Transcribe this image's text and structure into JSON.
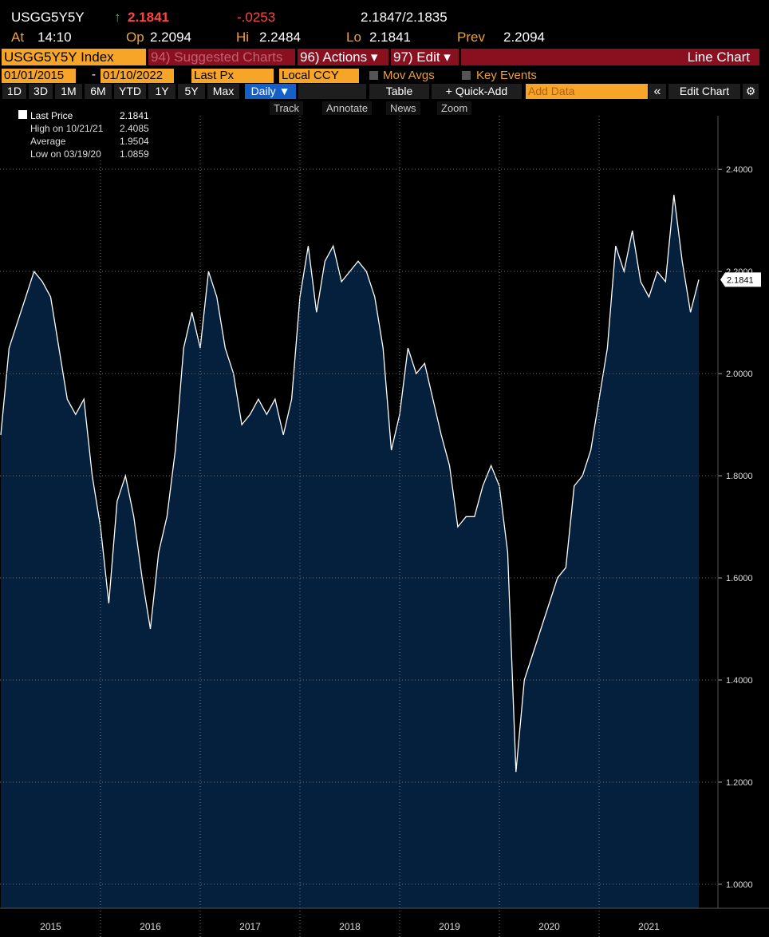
{
  "header": {
    "ticker": "USGG5Y5Y",
    "arrow": "↑",
    "last": "2.1841",
    "change": "-.0253",
    "bidask": "2.1847/2.1835",
    "at_label": "At",
    "at": "14:10",
    "op_label": "Op",
    "op": "2.2094",
    "hi_label": "Hi",
    "hi": "2.2484",
    "lo_label": "Lo",
    "lo": "2.1841",
    "prev_label": "Prev",
    "prev": "2.2094"
  },
  "menu": {
    "security": "USGG5Y5Y Index",
    "suggested": "94) Suggested Charts",
    "actions": "96) Actions ▾",
    "edit": "97) Edit ▾",
    "chart_type": "Line Chart"
  },
  "settings": {
    "start": "01/01/2015",
    "dash": "-",
    "end": "01/10/2022",
    "field": "Last Px",
    "currency": "Local CCY",
    "mov_avgs": "Mov Avgs",
    "key_events": "Key Events"
  },
  "toolbar": {
    "periods": [
      "1D",
      "3D",
      "1M",
      "6M",
      "YTD",
      "1Y",
      "5Y",
      "Max"
    ],
    "frequency": "Daily ▼",
    "table": "Table",
    "quick_add": "+ Quick-Add",
    "add_data": "Add Data",
    "collapse": "«",
    "edit_chart": "Edit Chart"
  },
  "tools": [
    "Track",
    "Annotate",
    "News",
    "Zoom"
  ],
  "legend": {
    "rows": [
      [
        "Last Price",
        "2.1841"
      ],
      [
        "High on 10/21/21",
        "2.4085"
      ],
      [
        "Average",
        "1.9504"
      ],
      [
        "Low on 03/19/20",
        "1.0859"
      ]
    ]
  },
  "chart_data": {
    "type": "area",
    "color": "#ffffff",
    "fill": "#04203d",
    "categories": [
      null,
      null,
      null,
      null,
      null,
      null,
      "2015",
      null,
      null,
      null,
      null,
      null,
      null,
      null,
      null,
      null,
      null,
      null,
      "2016",
      null,
      null,
      null,
      null,
      null,
      null,
      null,
      null,
      null,
      null,
      null,
      "2017",
      null,
      null,
      null,
      null,
      null,
      null,
      null,
      null,
      null,
      null,
      null,
      "2018",
      null,
      null,
      null,
      null,
      null,
      null,
      null,
      null,
      null,
      null,
      null,
      "2019",
      null,
      null,
      null,
      null,
      null,
      null,
      null,
      null,
      null,
      null,
      null,
      "2020",
      null,
      null,
      null,
      null,
      null,
      null,
      null,
      null,
      null,
      null,
      null,
      "2021",
      null,
      null,
      null,
      null,
      null,
      null
    ],
    "values": [
      1.88,
      2.05,
      2.1,
      2.15,
      2.2,
      2.18,
      2.15,
      2.05,
      1.95,
      1.92,
      1.95,
      1.8,
      1.7,
      1.55,
      1.75,
      1.8,
      1.72,
      1.6,
      1.5,
      1.65,
      1.72,
      1.85,
      2.05,
      2.12,
      2.05,
      2.2,
      2.15,
      2.05,
      2.0,
      1.9,
      1.92,
      1.95,
      1.92,
      1.95,
      1.88,
      1.95,
      2.15,
      2.25,
      2.12,
      2.22,
      2.25,
      2.18,
      2.2,
      2.22,
      2.2,
      2.15,
      2.05,
      1.85,
      1.92,
      2.05,
      2.0,
      2.02,
      1.95,
      1.88,
      1.82,
      1.7,
      1.72,
      1.72,
      1.78,
      1.82,
      1.78,
      1.65,
      1.22,
      1.4,
      1.45,
      1.5,
      1.55,
      1.6,
      1.62,
      1.78,
      1.8,
      1.85,
      1.95,
      2.05,
      2.25,
      2.2,
      2.28,
      2.18,
      2.15,
      2.2,
      2.18,
      2.35,
      2.22,
      2.12,
      2.1841
    ],
    "ylim": [
      0.953,
      2.505
    ],
    "yticks": [
      {
        "value": 1.0,
        "label": "1.0000"
      },
      {
        "value": 1.2,
        "label": "1.2000"
      },
      {
        "value": 1.4,
        "label": "1.4000"
      },
      {
        "value": 1.6,
        "label": "1.6000"
      },
      {
        "value": 1.8,
        "label": "1.8000"
      },
      {
        "value": 2.0,
        "label": "2.0000"
      },
      {
        "value": 2.2,
        "label": "2.2000"
      },
      {
        "value": 2.4,
        "label": "2.4000"
      }
    ],
    "grid": true
  }
}
